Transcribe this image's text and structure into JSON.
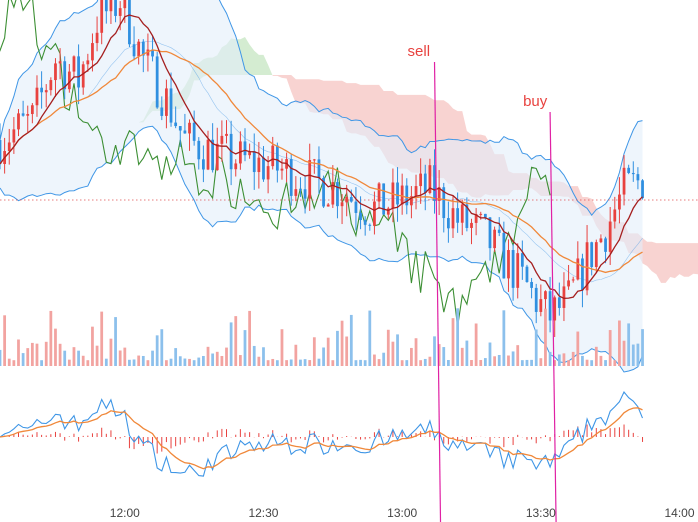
{
  "colors": {
    "up": "#e8423f",
    "down": "#2f8fe0",
    "up_vol": "#f2a3a0",
    "down_vol": "#8cc0ec",
    "cloud_bull": "#9fd49a",
    "cloud_bear": "#f2a8a4",
    "band_fill": "#e3effa",
    "band_line": "#3f96e6",
    "tenkan": "#a51f1f",
    "kijun": "#f0883a",
    "chikou": "#3c8f34",
    "signal_line": "#e021a4",
    "ref_line": "#e05050"
  },
  "chart_data": [
    {
      "type": "candlestick",
      "panel": "price",
      "x_tick_labels": [
        "12:00",
        "12:30",
        "13:00",
        "13:30",
        "14:00"
      ],
      "x_ticks_minutes": [
        0,
        30,
        60,
        90,
        120
      ],
      "x_range_minutes": [
        -27,
        124
      ],
      "y_range_rel": [
        -6.5,
        10
      ],
      "current_price_rel": 0,
      "overlays": [
        "ichimoku cloud",
        "bollinger bands",
        "moving averages",
        "lagging line"
      ],
      "candles_last_minute": 112,
      "candle_count": 140,
      "signals": [
        {
          "label": "sell",
          "time_minutes": 67
        },
        {
          "label": "buy",
          "time_minutes": 92
        }
      ]
    },
    {
      "type": "bar",
      "panel": "volume",
      "grid": false
    },
    {
      "type": "line",
      "panel": "oscillator",
      "series": [
        "fast",
        "slow"
      ],
      "histogram": true
    }
  ]
}
